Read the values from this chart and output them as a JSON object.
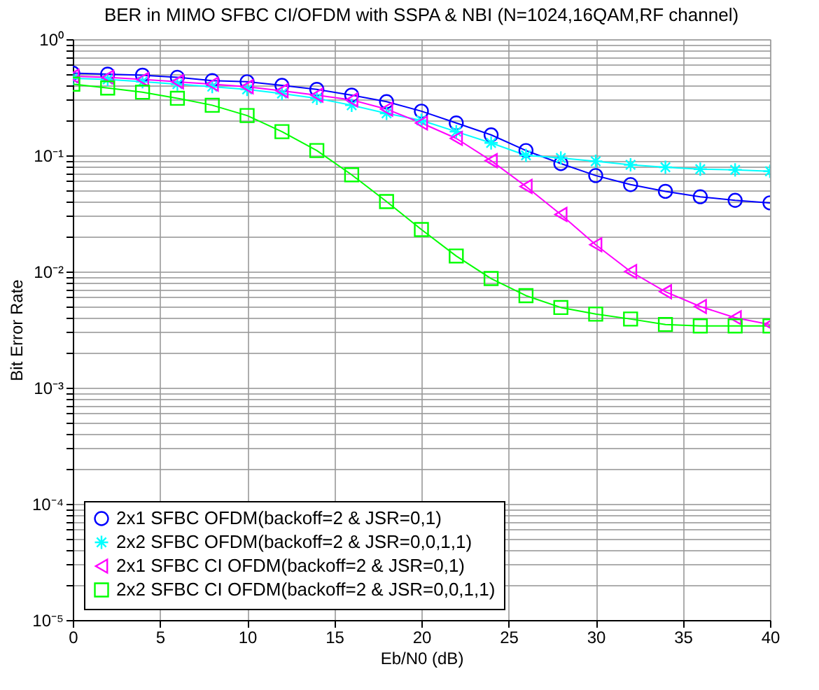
{
  "chart_data": {
    "type": "line",
    "title": "BER in MIMO SFBC CI/OFDM with SSPA & NBI (N=1024,16QAM,RF channel)",
    "xlabel": "Eb/N0 (dB)",
    "ylabel": "Bit Error Rate",
    "x": [
      0,
      2,
      4,
      6,
      8,
      10,
      12,
      14,
      16,
      18,
      20,
      22,
      24,
      26,
      28,
      30,
      32,
      34,
      36,
      38,
      40
    ],
    "series": [
      {
        "name": "2x1 SFBC OFDM(backoff=2 & JSR=0,1)",
        "color": "#0000ff",
        "marker": "circle",
        "values": [
          0.51,
          0.5,
          0.49,
          0.47,
          0.44,
          0.43,
          0.4,
          0.37,
          0.33,
          0.29,
          0.24,
          0.19,
          0.15,
          0.11,
          0.085,
          0.067,
          0.056,
          0.049,
          0.044,
          0.041,
          0.039
        ]
      },
      {
        "name": "2x2 SFBC OFDM(backoff=2 & JSR=0,0,1,1)",
        "color": "#00ffff",
        "marker": "cross",
        "values": [
          0.46,
          0.45,
          0.43,
          0.41,
          0.39,
          0.37,
          0.34,
          0.31,
          0.27,
          0.23,
          0.2,
          0.16,
          0.128,
          0.1,
          0.095,
          0.089,
          0.083,
          0.079,
          0.076,
          0.075,
          0.073
        ]
      },
      {
        "name": "2x1 SFBC CI OFDM(backoff=2 & JSR=0,1)",
        "color": "#ff00ff",
        "marker": "triangle",
        "values": [
          0.48,
          0.47,
          0.45,
          0.43,
          0.41,
          0.39,
          0.36,
          0.33,
          0.3,
          0.25,
          0.19,
          0.14,
          0.09,
          0.054,
          0.031,
          0.017,
          0.01,
          0.0067,
          0.005,
          0.004,
          0.0035
        ]
      },
      {
        "name": "2x2 SFBC CI OFDM(backoff=2 & JSR=0,0,1,1)",
        "color": "#00ff00",
        "marker": "square",
        "values": [
          0.41,
          0.38,
          0.35,
          0.31,
          0.27,
          0.22,
          0.16,
          0.11,
          0.068,
          0.04,
          0.023,
          0.0136,
          0.0087,
          0.0062,
          0.0049,
          0.0043,
          0.0039,
          0.0035,
          0.0034,
          0.0034,
          0.0034
        ]
      }
    ],
    "xlim": [
      0,
      40
    ],
    "xticks": [
      0,
      5,
      10,
      15,
      20,
      25,
      30,
      35,
      40
    ],
    "log": true,
    "ylim": [
      1e-05,
      1
    ],
    "yticks": [
      {
        "value": 1e-05,
        "label": "10⁻⁵"
      },
      {
        "value": 2e-05,
        "label": null
      },
      {
        "value": 3e-05,
        "label": null
      },
      {
        "value": 4e-05,
        "label": null
      },
      {
        "value": 5e-05,
        "label": null
      },
      {
        "value": 6e-05,
        "label": null
      },
      {
        "value": 7e-05,
        "label": null
      },
      {
        "value": 8e-05,
        "label": null
      },
      {
        "value": 9e-05,
        "label": null
      },
      {
        "value": 0.0001,
        "label": "10⁻⁴"
      },
      {
        "value": 0.0002,
        "label": null
      },
      {
        "value": 0.0003,
        "label": null
      },
      {
        "value": 0.0004,
        "label": null
      },
      {
        "value": 0.0005,
        "label": null
      },
      {
        "value": 0.0006,
        "label": null
      },
      {
        "value": 0.0007,
        "label": null
      },
      {
        "value": 0.0008,
        "label": null
      },
      {
        "value": 0.0009,
        "label": null
      },
      {
        "value": 0.001,
        "label": "10⁻³"
      },
      {
        "value": 0.002,
        "label": null
      },
      {
        "value": 0.003,
        "label": null
      },
      {
        "value": 0.004,
        "label": null
      },
      {
        "value": 0.005,
        "label": null
      },
      {
        "value": 0.006,
        "label": null
      },
      {
        "value": 0.007,
        "label": null
      },
      {
        "value": 0.008,
        "label": null
      },
      {
        "value": 0.009,
        "label": null
      },
      {
        "value": 0.01,
        "label": "10⁻²"
      },
      {
        "value": 0.02,
        "label": null
      },
      {
        "value": 0.03,
        "label": null
      },
      {
        "value": 0.04,
        "label": null
      },
      {
        "value": 0.05,
        "label": null
      },
      {
        "value": 0.06,
        "label": null
      },
      {
        "value": 0.07,
        "label": null
      },
      {
        "value": 0.08,
        "label": null
      },
      {
        "value": 0.09,
        "label": null
      },
      {
        "value": 0.1,
        "label": "10⁻¹"
      },
      {
        "value": 0.2,
        "label": null
      },
      {
        "value": 0.3,
        "label": null
      },
      {
        "value": 0.4,
        "label": null
      },
      {
        "value": 0.5,
        "label": null
      },
      {
        "value": 0.6,
        "label": null
      },
      {
        "value": 0.7,
        "label": null
      },
      {
        "value": 0.8,
        "label": null
      },
      {
        "value": 0.9,
        "label": null
      },
      {
        "value": 1,
        "label": "10⁰"
      }
    ],
    "grid": true,
    "legend": "bottom left",
    "line_style": "solid"
  }
}
